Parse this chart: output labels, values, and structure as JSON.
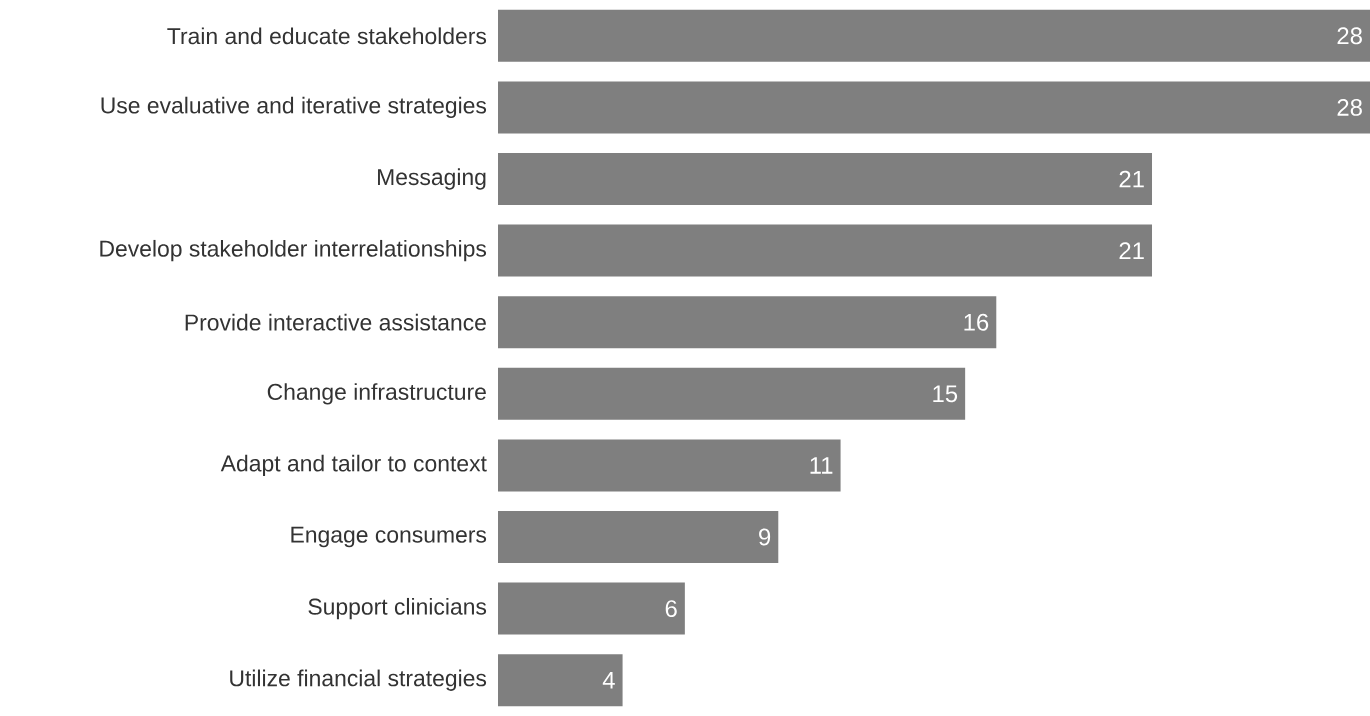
{
  "chart_data": {
    "type": "bar",
    "orientation": "horizontal",
    "data_labels": true,
    "color": "#7f7f7f",
    "categories": [
      "Train and educate stakeholders",
      "Use evaluative and iterative strategies",
      "Messaging",
      "Develop stakeholder interrelationships",
      "Provide interactive assistance",
      "Change infrastructure",
      "Adapt and tailor to context",
      "Engage consumers",
      "Support clinicians",
      "Utilize financial strategies"
    ],
    "values": [
      28,
      28,
      21,
      21,
      16,
      15,
      11,
      9,
      6,
      4
    ]
  }
}
